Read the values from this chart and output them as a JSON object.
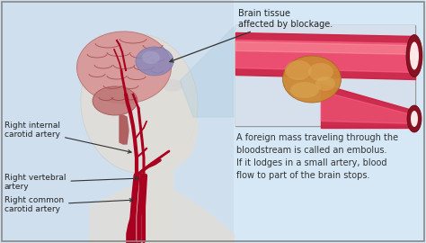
{
  "bg_color_top": "#d6e8f5",
  "bg_color_bottom": "#b8cfe0",
  "border_color": "#888888",
  "label_brain": "Brain tissue\naffected by blockage.",
  "label_internal": "Right internal\ncarotid artery",
  "label_vertebral": "Right vertebral\nartery",
  "label_common": "Right common\ncarotid artery",
  "caption": "A foreign mass traveling through the\nbloodstream is called an embolus.\nIf it lodges in a small artery, blood\nflow to part of the brain stops.",
  "label_color": "#222222",
  "caption_color": "#333333",
  "artery_color": "#aa0020",
  "artery_light": "#cc3350",
  "embolus_color": "#cc8833",
  "embolus_light": "#ddaa55",
  "brain_color": "#d89898",
  "brain_fold_color": "#aa5555",
  "brain_affected_color": "#8888bb",
  "brain_affected_light": "#aaaacc",
  "skin_color": "#e0ddd8",
  "skin_shadow": "#c8c5c0",
  "inset_bg": "#e0e8f0",
  "inset_border": "#999999",
  "tube_color": "#cc2244",
  "tube_inner_color": "#ff6688",
  "tube_cap_color": "#881122",
  "lumen_color": "#ffe8e8",
  "bg_left": "#ccd8e8"
}
